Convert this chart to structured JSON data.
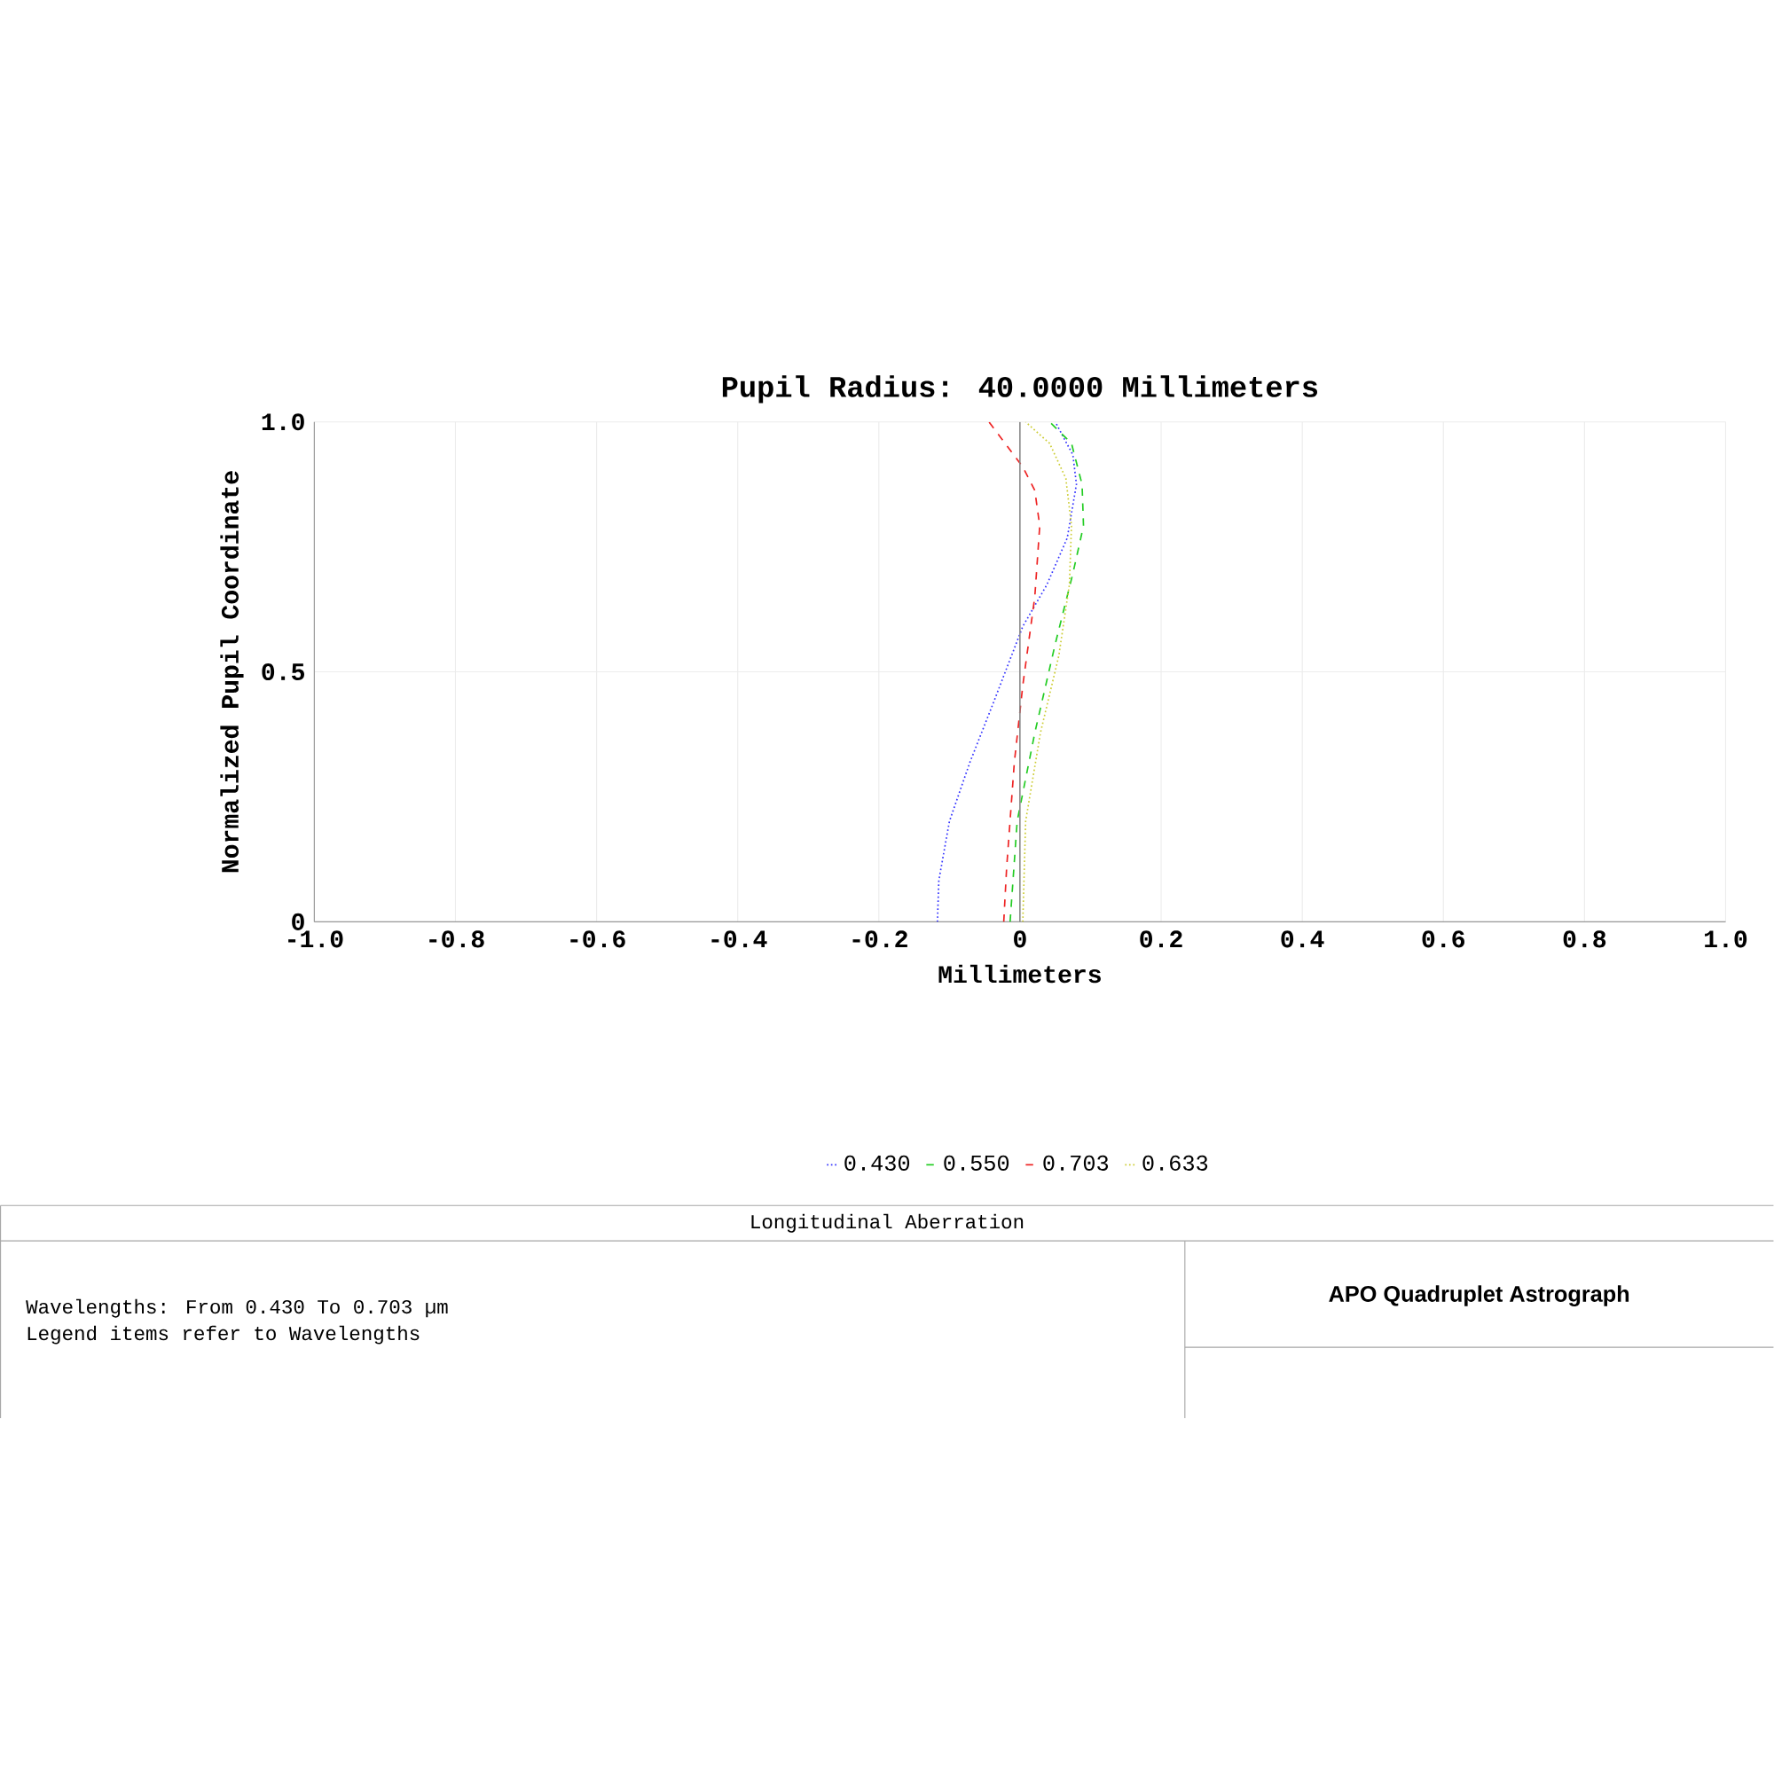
{
  "chart_data": {
    "type": "line",
    "title": "Pupil Radius: 40.0000 Millimeters",
    "xlabel": "Millimeters",
    "ylabel": "Normalized Pupil Coordinate",
    "series": [
      {
        "name": "0.430",
        "color": "#3333ff",
        "line_style": "dotted",
        "x": [
          -0.117,
          -0.115,
          -0.1,
          -0.071,
          -0.038,
          0.004,
          0.038,
          0.067,
          0.08,
          0.075,
          0.05
        ],
        "values": [
          0,
          0.083,
          0.201,
          0.319,
          0.437,
          0.591,
          0.674,
          0.768,
          0.875,
          0.934,
          1.0
        ]
      },
      {
        "name": "0.550",
        "color": "#22cc22",
        "line_style": "dashed",
        "x": [
          -0.014,
          -0.004,
          0.021,
          0.05,
          0.075,
          0.09,
          0.088,
          0.073,
          0.042
        ],
        "values": [
          0,
          0.201,
          0.378,
          0.556,
          0.697,
          0.792,
          0.875,
          0.957,
          1.0
        ]
      },
      {
        "name": "0.703",
        "color": "#ee2222",
        "line_style": "dashed",
        "x": [
          -0.023,
          -0.019,
          -0.008,
          0.004,
          0.021,
          0.028,
          0.021,
          0.004,
          -0.044
        ],
        "values": [
          0,
          0.106,
          0.319,
          0.473,
          0.65,
          0.792,
          0.863,
          0.91,
          1.0
        ]
      },
      {
        "name": "0.633",
        "color": "#cccc33",
        "line_style": "dotted",
        "x": [
          0.004,
          0.008,
          0.029,
          0.055,
          0.07,
          0.073,
          0.065,
          0.042,
          0.008
        ],
        "values": [
          0,
          0.201,
          0.378,
          0.532,
          0.674,
          0.792,
          0.887,
          0.957,
          1.0
        ]
      }
    ],
    "xlim": [
      -1.0,
      1.0
    ],
    "xticks": [
      {
        "value": -1.0,
        "label": "-1.0"
      },
      -0.8,
      -0.6,
      -0.4,
      -0.2,
      0,
      0.2,
      0.4,
      0.6,
      0.8,
      {
        "value": 1.0,
        "label": "1.0"
      }
    ],
    "ylim": [
      0,
      1.0
    ],
    "yticks": [
      0,
      0.5,
      {
        "value": 1.0,
        "label": "1.0"
      }
    ],
    "ref_lines": [
      {
        "axis": "x",
        "value": 0,
        "color": "#888888"
      }
    ],
    "grid": true,
    "legend": "bottom",
    "annotations": [
      "Longitudinal Aberration",
      "Wavelengths: From 0.430 To 0.703 µm",
      "Legend items refer to Wavelengths",
      "APO Quadruplet Astrograph"
    ]
  }
}
